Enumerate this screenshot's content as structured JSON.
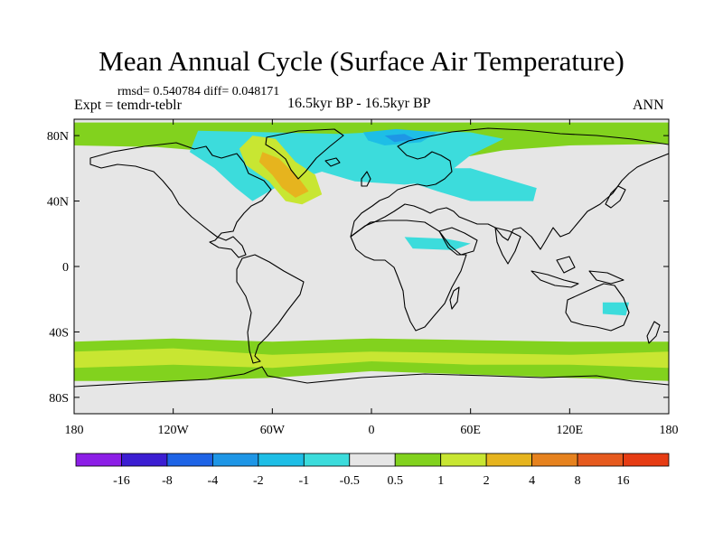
{
  "title": "Mean Annual Cycle (Surface Air Temperature)",
  "stats": "rmsd= 0.540784 diff= 0.048171",
  "experiment": "Expt = temdr-teblr",
  "period": "16.5kyr BP - 16.5kyr BP",
  "season": "ANN",
  "colors": {
    "neutral": "#e6e6e6",
    "coastline": "#000000"
  },
  "chart_data": {
    "type": "heatmap",
    "projection": "cylindrical-equidistant",
    "xlim": [
      -180,
      180
    ],
    "ylim": [
      -90,
      90
    ],
    "x_ticks": [
      {
        "value": -180,
        "label": "180"
      },
      {
        "value": -120,
        "label": "120W"
      },
      {
        "value": -60,
        "label": "60W"
      },
      {
        "value": 0,
        "label": "0"
      },
      {
        "value": 60,
        "label": "60E"
      },
      {
        "value": 120,
        "label": "120E"
      },
      {
        "value": 180,
        "label": "180"
      }
    ],
    "y_ticks": [
      {
        "value": 80,
        "label": "80N"
      },
      {
        "value": 40,
        "label": "40N"
      },
      {
        "value": 0,
        "label": "0"
      },
      {
        "value": -40,
        "label": "40S"
      },
      {
        "value": -80,
        "label": "80S"
      }
    ],
    "colorbar": {
      "labels": [
        "-16",
        "-8",
        "-4",
        "-2",
        "-1",
        "-0.5",
        "0.5",
        "1",
        "2",
        "4",
        "8",
        "16"
      ],
      "colors": [
        "#8c1ee6",
        "#3c1ed2",
        "#1e64e6",
        "#1e96e6",
        "#1ebee6",
        "#3cdcdc",
        "#e6e6e6",
        "#82d21e",
        "#c8e632",
        "#e6b41e",
        "#e6821e",
        "#e65a1e",
        "#e63c14"
      ]
    },
    "anomaly_regions": [
      {
        "name": "arctic-warm-band",
        "class": 1,
        "points": [
          [
            -180,
            74
          ],
          [
            -130,
            73
          ],
          [
            -80,
            69
          ],
          [
            -40,
            63
          ],
          [
            0,
            62
          ],
          [
            40,
            64
          ],
          [
            80,
            71
          ],
          [
            120,
            74
          ],
          [
            180,
            75
          ],
          [
            180,
            88
          ],
          [
            -180,
            88
          ]
        ]
      },
      {
        "name": "north-atlantic-cool",
        "class": -1,
        "points": [
          [
            -105,
            83
          ],
          [
            -60,
            82
          ],
          [
            -20,
            81
          ],
          [
            20,
            83
          ],
          [
            60,
            82
          ],
          [
            80,
            78
          ],
          [
            60,
            68
          ],
          [
            40,
            52
          ],
          [
            20,
            50
          ],
          [
            -10,
            52
          ],
          [
            -30,
            58
          ],
          [
            -55,
            50
          ],
          [
            -72,
            40
          ],
          [
            -82,
            48
          ],
          [
            -95,
            60
          ],
          [
            -110,
            70
          ]
        ]
      },
      {
        "name": "eurasia-cool",
        "class": -1,
        "points": [
          [
            20,
            60
          ],
          [
            60,
            60
          ],
          [
            80,
            54
          ],
          [
            100,
            48
          ],
          [
            98,
            40
          ],
          [
            60,
            40
          ],
          [
            40,
            46
          ],
          [
            22,
            52
          ]
        ]
      },
      {
        "name": "arctic-cold-core",
        "class": -2,
        "points": [
          [
            -5,
            82
          ],
          [
            15,
            84
          ],
          [
            40,
            82
          ],
          [
            30,
            76
          ],
          [
            8,
            74
          ],
          [
            -2,
            77
          ]
        ]
      },
      {
        "name": "barents-cold",
        "class": -3,
        "points": [
          [
            8,
            80
          ],
          [
            20,
            81
          ],
          [
            26,
            78
          ],
          [
            14,
            76
          ]
        ]
      },
      {
        "name": "labrador-warm",
        "class": 2,
        "points": [
          [
            -72,
            80
          ],
          [
            -58,
            78
          ],
          [
            -46,
            64
          ],
          [
            -34,
            56
          ],
          [
            -30,
            44
          ],
          [
            -42,
            38
          ],
          [
            -52,
            40
          ],
          [
            -62,
            52
          ],
          [
            -76,
            62
          ],
          [
            -80,
            72
          ]
        ]
      },
      {
        "name": "labrador-warm-core",
        "class": 3,
        "points": [
          [
            -66,
            70
          ],
          [
            -56,
            66
          ],
          [
            -44,
            54
          ],
          [
            -38,
            46
          ],
          [
            -46,
            42
          ],
          [
            -54,
            48
          ],
          [
            -60,
            56
          ],
          [
            -68,
            64
          ]
        ]
      },
      {
        "name": "middle-east-cool",
        "class": -1,
        "points": [
          [
            20,
            18
          ],
          [
            45,
            17
          ],
          [
            60,
            14
          ],
          [
            50,
            10
          ],
          [
            25,
            11
          ]
        ]
      },
      {
        "name": "australia-cool",
        "class": -1,
        "points": [
          [
            140,
            -22
          ],
          [
            156,
            -22
          ],
          [
            154,
            -30
          ],
          [
            140,
            -29
          ]
        ]
      },
      {
        "name": "southern-ocean-band",
        "class": 1,
        "points": [
          [
            -180,
            -46
          ],
          [
            -120,
            -44
          ],
          [
            -60,
            -46
          ],
          [
            0,
            -44
          ],
          [
            60,
            -45
          ],
          [
            120,
            -46
          ],
          [
            180,
            -46
          ],
          [
            180,
            -70
          ],
          [
            120,
            -68
          ],
          [
            60,
            -66
          ],
          [
            0,
            -64
          ],
          [
            -60,
            -68
          ],
          [
            -120,
            -70
          ],
          [
            -180,
            -70
          ]
        ]
      },
      {
        "name": "southern-ocean-core",
        "class": 2,
        "points": [
          [
            -180,
            -52
          ],
          [
            -120,
            -50
          ],
          [
            -60,
            -54
          ],
          [
            0,
            -52
          ],
          [
            60,
            -53
          ],
          [
            120,
            -54
          ],
          [
            180,
            -52
          ],
          [
            180,
            -62
          ],
          [
            120,
            -60
          ],
          [
            60,
            -60
          ],
          [
            0,
            -58
          ],
          [
            -60,
            -62
          ],
          [
            -120,
            -60
          ],
          [
            -180,
            -62
          ]
        ]
      }
    ]
  }
}
